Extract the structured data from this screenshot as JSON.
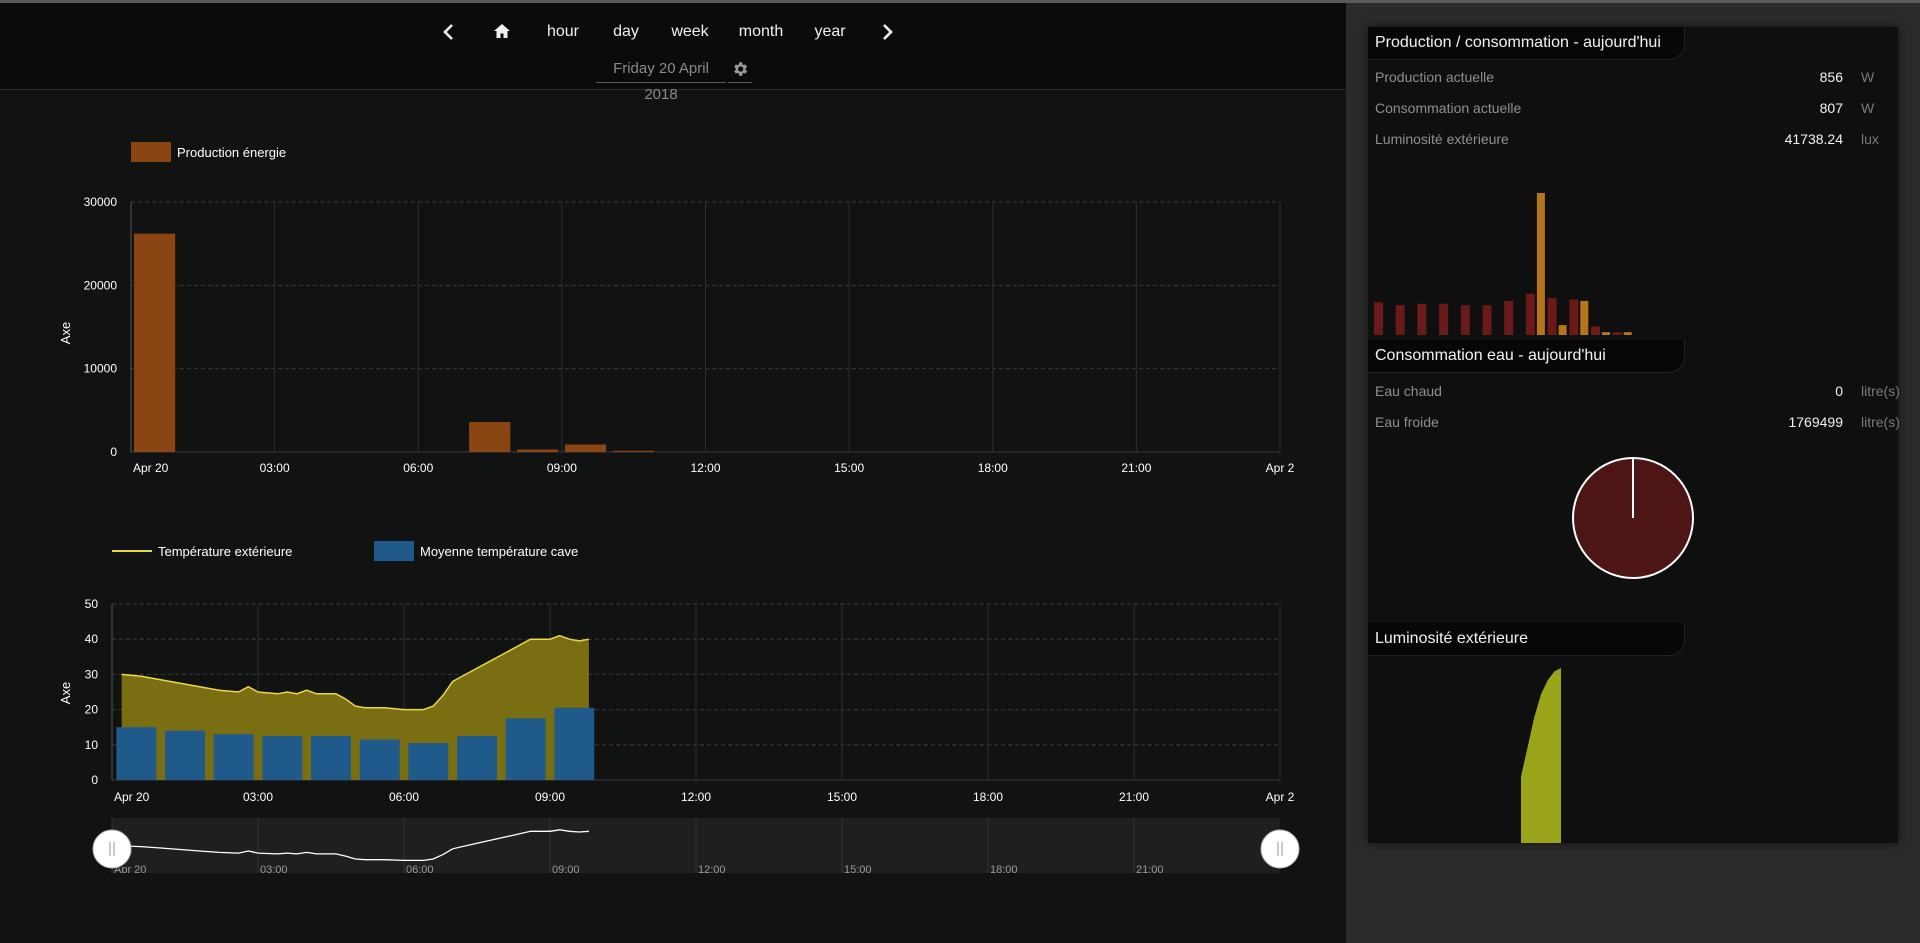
{
  "nav": {
    "prev_icon": "chevron-left-icon",
    "home_icon": "home-icon",
    "hour": "hour",
    "day": "day",
    "week": "week",
    "month": "month",
    "year": "year",
    "next_icon": "chevron-right-icon",
    "date": "Friday 20 April 2018",
    "settings_icon": "gear-icon"
  },
  "colors": {
    "production": "#8b4513",
    "temp_line": "#e8d84a",
    "temp_area": "#7a6e12",
    "cave": "#1f5a8a",
    "navigator": "#ffffff",
    "pie": "#4d1515",
    "lux": "#9aa418",
    "consumption_bar": "#6b1a1a",
    "production_bar": "#b5751a"
  },
  "chart_data": [
    {
      "type": "bar",
      "ylabel": "Axe",
      "ylim": [
        0,
        30000
      ],
      "yticks": [
        "0",
        "10000",
        "20000",
        "30000"
      ],
      "xticks": [
        "Apr 20",
        "03:00",
        "06:00",
        "09:00",
        "12:00",
        "15:00",
        "18:00",
        "21:00",
        "Apr 2"
      ],
      "xlim_hours": [
        0,
        24
      ],
      "legend": "top-left",
      "grid": true,
      "series": [
        {
          "name": "Production énergie",
          "x_hours": [
            0,
            7,
            8,
            9,
            10
          ],
          "values": [
            26200,
            3600,
            300,
            900,
            150
          ]
        }
      ]
    },
    {
      "type": "line",
      "ylabel": "Axe",
      "ylim": [
        0,
        50
      ],
      "yticks": [
        "0",
        "10",
        "20",
        "30",
        "40",
        "50"
      ],
      "xticks": [
        "Apr 20",
        "03:00",
        "06:00",
        "09:00",
        "12:00",
        "15:00",
        "18:00",
        "21:00",
        "Apr 2"
      ],
      "xlim_hours": [
        0,
        24
      ],
      "legend": "top-left",
      "grid": true,
      "series": [
        {
          "name": "Température extérieure",
          "x_hours": [
            0.2,
            0.6,
            1.0,
            1.4,
            1.8,
            2.2,
            2.6,
            2.8,
            3.0,
            3.4,
            3.6,
            3.8,
            4.0,
            4.2,
            4.4,
            4.6,
            4.8,
            5.0,
            5.2,
            5.6,
            6.0,
            6.4,
            6.6,
            6.8,
            7.0,
            7.4,
            7.8,
            8.2,
            8.6,
            9.0,
            9.2,
            9.4,
            9.6,
            9.8
          ],
          "values": [
            30,
            29.5,
            28.5,
            27.5,
            26.5,
            25.5,
            25,
            26.5,
            25,
            24.5,
            25,
            24.5,
            25.5,
            24.5,
            24.5,
            24.5,
            23,
            21,
            20.5,
            20.5,
            20,
            20,
            21,
            24,
            28,
            31,
            34,
            37,
            40,
            40,
            41,
            40,
            39.5,
            40
          ]
        },
        {
          "name": "Moyenne température cave",
          "type": "bar",
          "x_hours": [
            0.5,
            1.5,
            2.5,
            3.5,
            4.5,
            5.5,
            6.5,
            7.5,
            8.5,
            9.5
          ],
          "values": [
            15,
            14,
            13,
            12.5,
            12.5,
            11.5,
            10.5,
            12.5,
            17.5,
            20.5
          ]
        }
      ],
      "navigator": {
        "xticks": [
          "Apr 20",
          "03:00",
          "06:00",
          "09:00",
          "12:00",
          "15:00",
          "18:00",
          "21:00"
        ],
        "handle_icon": "drag-handle-icon"
      }
    },
    {
      "type": "bar",
      "panel": "production-consommation",
      "series": [
        {
          "name": "Consommation",
          "values": [
            0.23,
            0.21,
            0.22,
            0.22,
            0.21,
            0.21,
            0.24,
            0.29,
            0.26,
            0.25,
            0.06,
            0.02
          ]
        },
        {
          "name": "Production",
          "values": [
            0,
            0,
            0,
            0,
            0,
            0,
            0,
            1.0,
            0.07,
            0.24,
            0.02,
            0.02
          ]
        }
      ]
    },
    {
      "type": "pie",
      "panel": "consommation-eau",
      "series": [
        {
          "name": "Eau chaud",
          "values": [
            0
          ]
        },
        {
          "name": "Eau froide",
          "values": [
            1769499
          ]
        }
      ]
    },
    {
      "type": "area",
      "panel": "luminosite",
      "series": [
        {
          "name": "Luminosité extérieure",
          "values": [
            0.38,
            0.55,
            0.72,
            0.85,
            0.93,
            0.98,
            1.0
          ]
        }
      ]
    }
  ],
  "side": {
    "prod_title": "Production / consommation - aujourd'hui",
    "production_label": "Production actuelle",
    "production_value": "856",
    "production_unit": "W",
    "consumption_label": "Consommation actuelle",
    "consumption_value": "807",
    "consumption_unit": "W",
    "lux_label": "Luminosité extérieure",
    "lux_value": "41738.24",
    "lux_unit": "lux",
    "water_title": "Consommation eau - aujourd'hui",
    "hot_label": "Eau chaud",
    "hot_value": "0",
    "hot_unit": "litre(s)",
    "cold_label": "Eau froide",
    "cold_value": "1769499",
    "cold_unit": "litre(s)",
    "lux_title": "Luminosité extérieure"
  }
}
